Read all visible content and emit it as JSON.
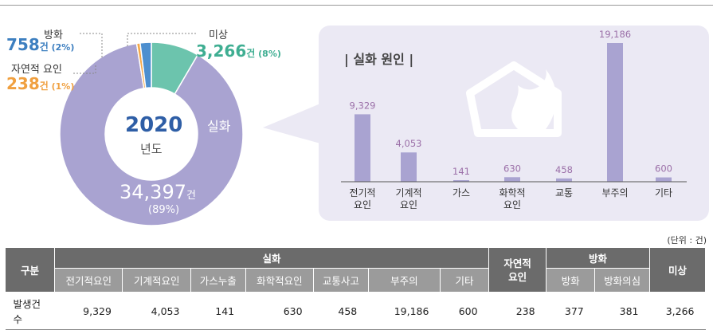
{
  "chart_data": [
    {
      "type": "pie",
      "center": {
        "year": "2020",
        "label": "년도"
      },
      "slices": [
        {
          "name": "실화",
          "value": 34397,
          "value_text": "34,397",
          "unit": "건",
          "pct": "(89%)",
          "color": "#a9a3d1",
          "label_color": "#ffffff"
        },
        {
          "name": "자연적 요인",
          "value": 238,
          "value_text": "238",
          "unit": "건",
          "pct": "(1%)",
          "color": "#f4a94a",
          "label_color": "#f0a040"
        },
        {
          "name": "방화",
          "value": 758,
          "value_text": "758",
          "unit": "건",
          "pct": "(2%)",
          "color": "#4d8fcf",
          "label_color": "#3d7fc0"
        },
        {
          "name": "미상",
          "value": 3266,
          "value_text": "3,266",
          "unit": "건",
          "pct": "(8%)",
          "color": "#6cc4ad",
          "label_color": "#3fae92"
        }
      ]
    },
    {
      "type": "bar",
      "title": "| 실화 원인 |",
      "categories": [
        [
          "전기적",
          "요인"
        ],
        [
          "기계적",
          "요인"
        ],
        [
          "가스"
        ],
        [
          "화학적",
          "요인"
        ],
        [
          "교통"
        ],
        [
          "부주의"
        ],
        [
          "기타"
        ]
      ],
      "values": [
        9329,
        4053,
        141,
        630,
        458,
        19186,
        600
      ],
      "value_labels": [
        "9,329",
        "4,053",
        "141",
        "630",
        "458",
        "19,186",
        "600"
      ],
      "ylim": [
        0,
        19186
      ],
      "bar_color": "#a9a3d1",
      "value_color": "#9b6fa8"
    }
  ],
  "unit_note": "(단위 : 건)",
  "table": {
    "header_group": "구분",
    "group_silhwa": "실화",
    "group_natural": "자연적\n요인",
    "group_banghwa": "방화",
    "group_misang": "미상",
    "silhwa_cols": [
      "전기적요인",
      "기계적요인",
      "가스누출",
      "화학적요인",
      "교통사고",
      "부주의",
      "기타"
    ],
    "banghwa_cols": [
      "방화",
      "방화의심"
    ],
    "row_label": "발생건수",
    "values": [
      "9,329",
      "4,053",
      "141",
      "630",
      "458",
      "19,186",
      "600",
      "238",
      "377",
      "381",
      "3,266"
    ]
  }
}
